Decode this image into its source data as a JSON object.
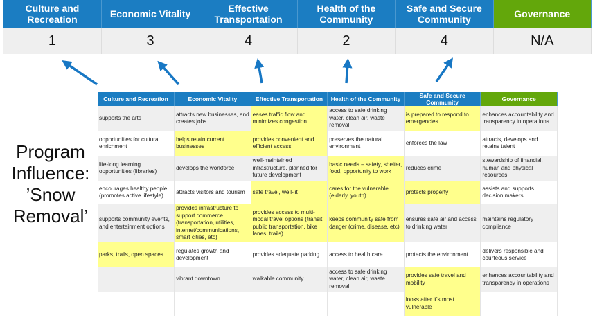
{
  "summary": {
    "headers": [
      "Culture and Recreation",
      "Economic Vitality",
      "Effective Transportation",
      "Health of the Community",
      "Safe and Secure Community",
      "Governance"
    ],
    "scores": [
      "1",
      "3",
      "4",
      "2",
      "4",
      "N/A"
    ]
  },
  "program_label": "Program Influence: ’Snow Removal’",
  "colors": {
    "header_blue": "#1b7dc2",
    "governance_green": "#63a70b",
    "highlight": "#ffff8c",
    "arrow": "#1777c4"
  },
  "matrix": {
    "headers": [
      "Culture and Recreation",
      "Economic Vitality",
      "Effective Transportation",
      "Health of the Community",
      "Safe and Secure Community",
      "Governance"
    ],
    "rows": [
      [
        "supports the arts",
        "attracts new businesses, and creates jobs",
        "eases traffic flow and minimizes congestion",
        "access to safe drinking water, clean air, waste removal",
        "is prepared to respond to emergencies",
        "enhances accountability and transparency in operations"
      ],
      [
        "opportunities for cultural enrichment",
        "helps retain current businesses",
        "provides convenient and efficient access",
        "preserves the natural environment",
        "enforces the law",
        "attracts, develops and retains talent"
      ],
      [
        "life-long learning opportunities (libraries)",
        "develops the workforce",
        "well-maintained infrastructure, planned for future development",
        "basic needs – safety, shelter, food, opportunity to work",
        "reduces crime",
        "stewardship of financial, human and physical resources"
      ],
      [
        "encourages healthy people (promotes active lifestyle)",
        "attracts visitors and tourism",
        "safe travel, well-lit",
        "cares for the vulnerable (elderly, youth)",
        "protects property",
        "assists and supports decision makers"
      ],
      [
        "supports community events, and entertainment options",
        "provides infrastructure to support commerce (transportation, utilities, internet/communications, smart cities, etc)",
        "provides access to multi-modal travel options (transit, public transportation, bike lanes, trails)",
        "keeps community safe from danger (crime, disease, etc)",
        "ensures safe air and access to drinking water",
        "maintains regulatory compliance"
      ],
      [
        "parks, trails, open spaces",
        "regulates growth and development",
        "provides adequate parking",
        "access to health care",
        "protects the environment",
        "delivers responsible and courteous service"
      ],
      [
        "",
        "vibrant downtown",
        "walkable community",
        "access to safe drinking water, clean air, waste removal",
        "provides safe travel and mobility",
        "enhances accountability and transparency in operations"
      ],
      [
        "",
        "",
        "",
        "",
        "looks after it's most vulnerable",
        ""
      ]
    ],
    "highlighted": [
      [
        2,
        4
      ],
      [
        1,
        2
      ],
      [
        3
      ],
      [
        2,
        3,
        4
      ],
      [
        1,
        2,
        3
      ],
      [
        0
      ],
      [
        4
      ],
      [
        4
      ]
    ]
  }
}
